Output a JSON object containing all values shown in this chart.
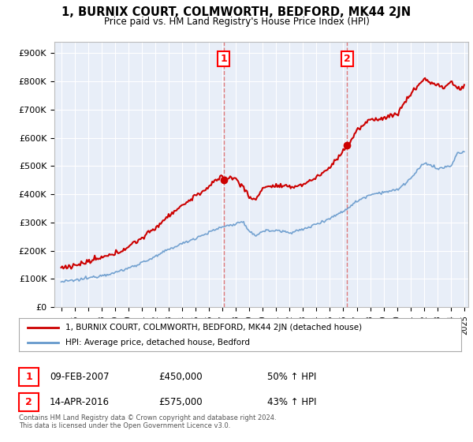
{
  "title": "1, BURNIX COURT, COLMWORTH, BEDFORD, MK44 2JN",
  "subtitle": "Price paid vs. HM Land Registry's House Price Index (HPI)",
  "ylabel_ticks": [
    "£0",
    "£100K",
    "£200K",
    "£300K",
    "£400K",
    "£500K",
    "£600K",
    "£700K",
    "£800K",
    "£900K"
  ],
  "ytick_values": [
    0,
    100000,
    200000,
    300000,
    400000,
    500000,
    600000,
    700000,
    800000,
    900000
  ],
  "ylim": [
    0,
    940000
  ],
  "background_color": "#ffffff",
  "chart_bg_color": "#e8eef8",
  "red_line_color": "#cc0000",
  "blue_line_color": "#6699cc",
  "dashed_color": "#dd6666",
  "marker1_date": 2007.11,
  "marker1_value": 450000,
  "marker2_date": 2016.28,
  "marker2_value": 575000,
  "sale1_date_str": "09-FEB-2007",
  "sale1_price_str": "£450,000",
  "sale1_hpi_str": "50% ↑ HPI",
  "sale2_date_str": "14-APR-2016",
  "sale2_price_str": "£575,000",
  "sale2_hpi_str": "43% ↑ HPI",
  "legend_label1": "1, BURNIX COURT, COLMWORTH, BEDFORD, MK44 2JN (detached house)",
  "legend_label2": "HPI: Average price, detached house, Bedford",
  "footer": "Contains HM Land Registry data © Crown copyright and database right 2024.\nThis data is licensed under the Open Government Licence v3.0.",
  "xtick_years": [
    1995,
    1996,
    1997,
    1998,
    1999,
    2000,
    2001,
    2002,
    2003,
    2004,
    2005,
    2006,
    2007,
    2008,
    2009,
    2010,
    2011,
    2012,
    2013,
    2014,
    2015,
    2016,
    2017,
    2018,
    2019,
    2020,
    2021,
    2022,
    2023,
    2024,
    2025
  ]
}
